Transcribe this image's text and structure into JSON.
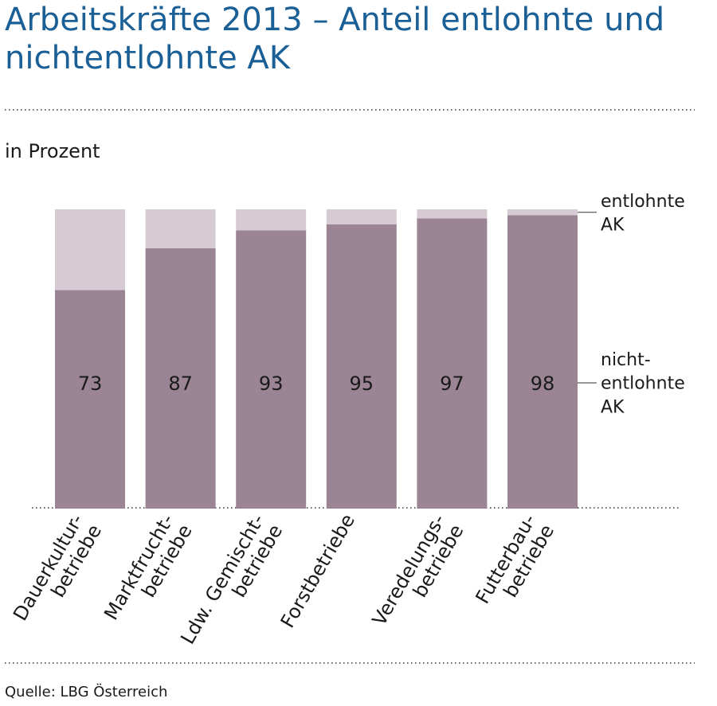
{
  "chart_data": {
    "type": "stacked_bar",
    "title": "Arbeitskräfte 2013 – Anteil entlohnte und\nnichtentlohnte AK",
    "subtitle": "in Prozent",
    "source": "Quelle: LBG Österreich",
    "categories": [
      "Dauerkultur-\nbetriebe",
      "Marktfrucht-\nbetriebe",
      "Ldw. Gemischt-\nbetriebe",
      "Forstbetriebe",
      "Veredelungs-\nbetriebe",
      "Futterbau-\nbetriebe"
    ],
    "series": [
      {
        "name": "nicht-\nentlohnte\nAK",
        "color": "#9b8494",
        "values": [
          73,
          87,
          93,
          95,
          97,
          98
        ],
        "show_labels": true
      },
      {
        "name": "entlohnte\nAK",
        "color": "#d6cad3",
        "values": [
          27,
          13,
          7,
          5,
          3,
          2
        ],
        "show_labels": false
      }
    ],
    "ylim": [
      0,
      100
    ]
  }
}
